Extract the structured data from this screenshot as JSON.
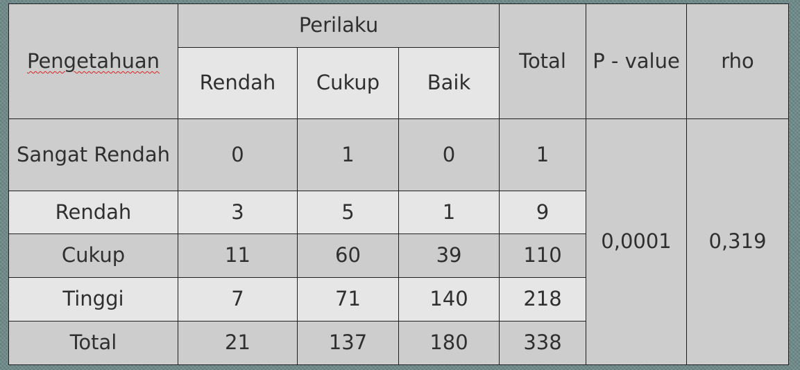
{
  "table": {
    "header": {
      "row_label": "Pengetahuan",
      "group_label": "Perilaku",
      "sub_columns": [
        "Rendah",
        "Cukup",
        "Baik"
      ],
      "total_label": "Total",
      "pvalue_label": "P - value",
      "rho_label": "rho"
    },
    "rows": [
      {
        "label": "Sangat Rendah",
        "values": [
          "0",
          "1",
          "0"
        ],
        "total": "1"
      },
      {
        "label": "Rendah",
        "values": [
          "3",
          "5",
          "1"
        ],
        "total": "9"
      },
      {
        "label": "Cukup",
        "values": [
          "11",
          "60",
          "39"
        ],
        "total": "110"
      },
      {
        "label": "Tinggi",
        "values": [
          "7",
          "71",
          "140"
        ],
        "total": "218"
      },
      {
        "label": "Total",
        "values": [
          "21",
          "137",
          "180"
        ],
        "total": "338"
      }
    ],
    "p_value": "0,0001",
    "rho": "0,319"
  }
}
